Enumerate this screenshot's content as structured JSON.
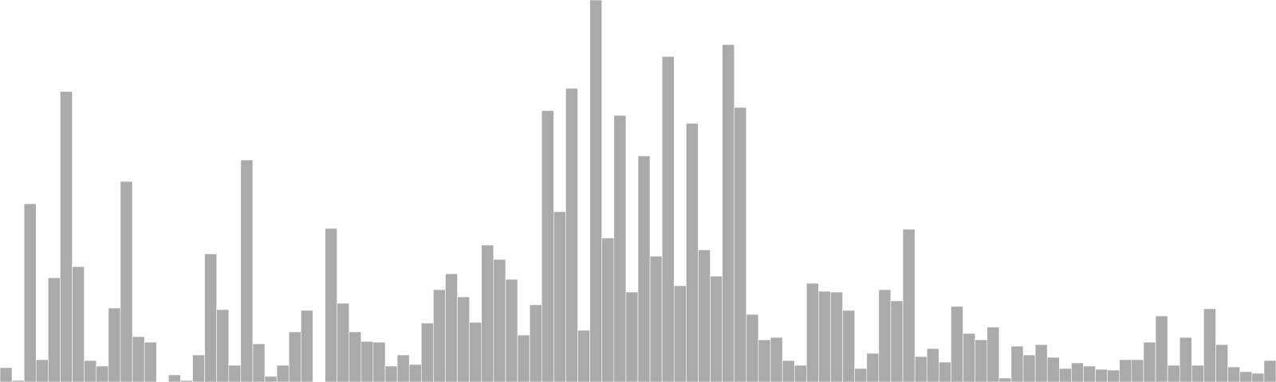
{
  "chart_data": {
    "type": "bar",
    "title": "",
    "xlabel": "",
    "ylabel": "",
    "ylim": [
      0,
      480
    ],
    "grid": false,
    "legend": "none",
    "bar_color": "#aaaaaa",
    "values": [
      18,
      2,
      224,
      28,
      131,
      365,
      145,
      27,
      20,
      93,
      252,
      57,
      50,
      0,
      9,
      2,
      34,
      161,
      91,
      21,
      279,
      48,
      7,
      21,
      63,
      90,
      0,
      193,
      99,
      63,
      51,
      50,
      20,
      34,
      22,
      74,
      116,
      136,
      107,
      75,
      172,
      154,
      129,
      59,
      97,
      341,
      214,
      369,
      65,
      480,
      181,
      335,
      113,
      284,
      158,
      409,
      121,
      325,
      166,
      133,
      424,
      345,
      85,
      53,
      56,
      27,
      21,
      124,
      114,
      113,
      90,
      17,
      36,
      116,
      102,
      192,
      32,
      42,
      25,
      95,
      61,
      53,
      69,
      5,
      45,
      34,
      47,
      31,
      17,
      24,
      20,
      16,
      15,
      28,
      28,
      50,
      83,
      21,
      56,
      21,
      92,
      47,
      19,
      13,
      11,
      27
    ]
  }
}
